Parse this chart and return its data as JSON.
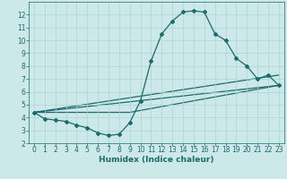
{
  "xlabel": "Humidex (Indice chaleur)",
  "background_color": "#cde8e8",
  "grid_color": "#add4d4",
  "line_color": "#1a6b6b",
  "xlim": [
    -0.5,
    23.5
  ],
  "ylim": [
    2,
    13
  ],
  "yticks": [
    2,
    3,
    4,
    5,
    6,
    7,
    8,
    9,
    10,
    11,
    12
  ],
  "xticks": [
    0,
    1,
    2,
    3,
    4,
    5,
    6,
    7,
    8,
    9,
    10,
    11,
    12,
    13,
    14,
    15,
    16,
    17,
    18,
    19,
    20,
    21,
    22,
    23
  ],
  "line1_x": [
    0,
    1,
    2,
    3,
    4,
    5,
    6,
    7,
    8,
    9,
    10,
    11,
    12,
    13,
    14,
    15,
    16,
    17,
    18,
    19,
    20,
    21,
    22,
    23
  ],
  "line1_y": [
    4.4,
    3.9,
    3.8,
    3.7,
    3.4,
    3.2,
    2.8,
    2.6,
    2.7,
    3.6,
    5.3,
    8.4,
    10.5,
    11.5,
    12.2,
    12.3,
    12.2,
    10.5,
    10.0,
    8.6,
    8.0,
    7.0,
    7.3,
    6.5
  ],
  "line2_x": [
    0,
    23
  ],
  "line2_y": [
    4.4,
    7.3
  ],
  "line3_x": [
    0,
    23
  ],
  "line3_y": [
    4.4,
    6.5
  ],
  "line4_x": [
    0,
    9,
    23
  ],
  "line4_y": [
    4.4,
    4.4,
    6.5
  ],
  "marker": "D",
  "marker_size": 2.0,
  "linewidth": 0.9,
  "xlabel_fontsize": 6.5,
  "tick_fontsize": 5.5
}
